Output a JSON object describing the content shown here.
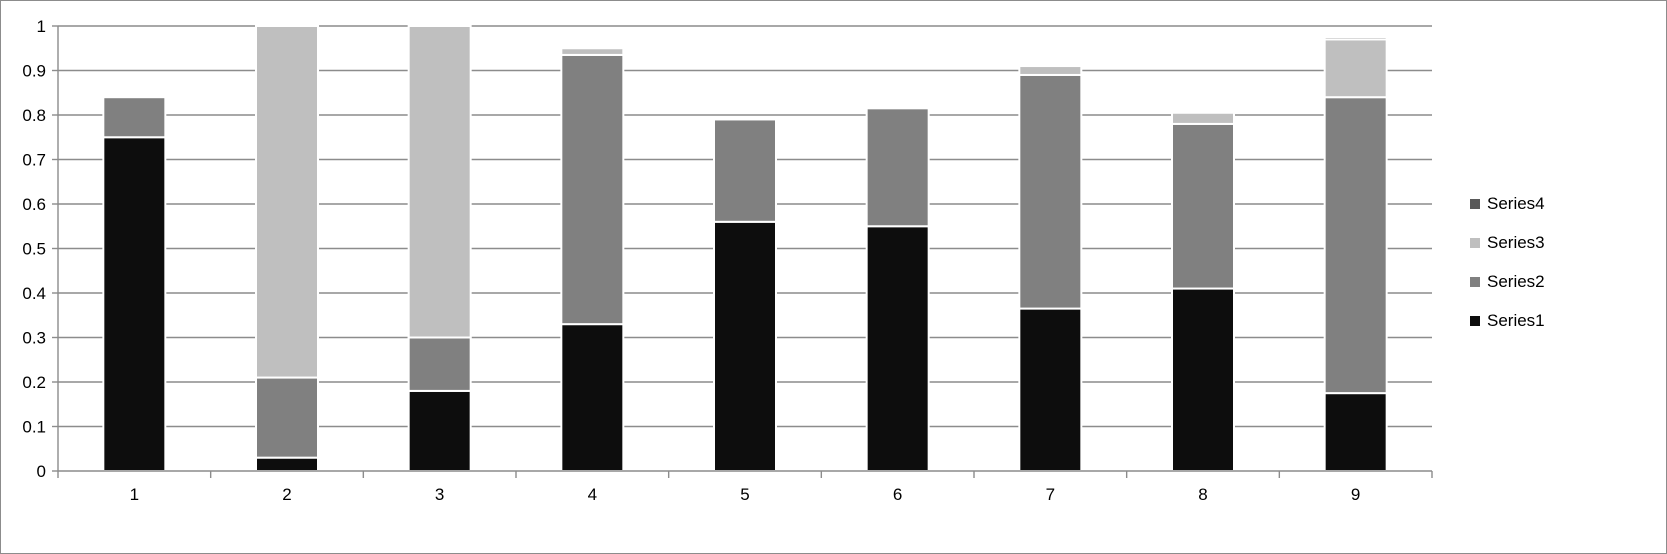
{
  "chart_data": {
    "type": "bar",
    "stacked": true,
    "categories": [
      "1",
      "2",
      "3",
      "4",
      "5",
      "6",
      "7",
      "8",
      "9"
    ],
    "series": [
      {
        "name": "Series1",
        "color": "#0d0d0d",
        "values": [
          0.75,
          0.03,
          0.18,
          0.33,
          0.56,
          0.55,
          0.365,
          0.41,
          0.175
        ]
      },
      {
        "name": "Series2",
        "color": "#808080",
        "values": [
          0.09,
          0.18,
          0.12,
          0.605,
          0.23,
          0.265,
          0.525,
          0.37,
          0.665
        ]
      },
      {
        "name": "Series3",
        "color": "#bfbfbf",
        "values": [
          0.0,
          0.79,
          0.7,
          0.015,
          0.0,
          0.0,
          0.02,
          0.025,
          0.13
        ]
      },
      {
        "name": "Series4",
        "color": "#595959",
        "values": [
          0.0,
          0.0,
          0.0,
          0.0,
          0.0,
          0.0,
          0.0,
          0.0,
          0.005
        ]
      }
    ],
    "ylim": [
      0,
      1
    ],
    "yticks": [
      "0",
      "0.1",
      "0.2",
      "0.3",
      "0.4",
      "0.5",
      "0.6",
      "0.7",
      "0.8",
      "0.9",
      "1"
    ],
    "grid": true,
    "legend": {
      "placement": "right",
      "order": [
        "Series4",
        "Series3",
        "Series2",
        "Series1"
      ]
    }
  }
}
